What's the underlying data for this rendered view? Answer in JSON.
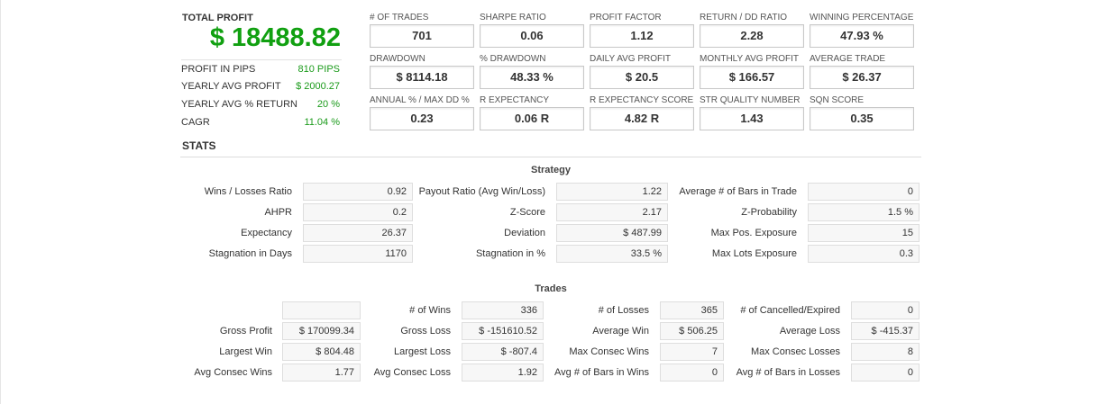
{
  "total_profit": {
    "label": "TOTAL PROFIT",
    "value": "$ 18488.82"
  },
  "summary": [
    {
      "label": "PROFIT IN PIPS",
      "value": "810 PIPS"
    },
    {
      "label": "YEARLY AVG PROFIT",
      "value": "$ 2000.27"
    },
    {
      "label": "YEARLY AVG % RETURN",
      "value": "20 %"
    },
    {
      "label": "CAGR",
      "value": "11.04 %"
    }
  ],
  "metrics": [
    {
      "label": "# OF TRADES",
      "value": "701"
    },
    {
      "label": "SHARPE RATIO",
      "value": "0.06"
    },
    {
      "label": "PROFIT FACTOR",
      "value": "1.12"
    },
    {
      "label": "RETURN / DD RATIO",
      "value": "2.28"
    },
    {
      "label": "WINNING PERCENTAGE",
      "value": "47.93 %"
    },
    {
      "label": "DRAWDOWN",
      "value": "$ 8114.18"
    },
    {
      "label": "% DRAWDOWN",
      "value": "48.33 %"
    },
    {
      "label": "DAILY AVG PROFIT",
      "value": "$ 20.5"
    },
    {
      "label": "MONTHLY AVG PROFIT",
      "value": "$ 166.57"
    },
    {
      "label": "AVERAGE TRADE",
      "value": "$ 26.37"
    },
    {
      "label": "ANNUAL % / MAX DD %",
      "value": "0.23"
    },
    {
      "label": "R EXPECTANCY",
      "value": "0.06 R"
    },
    {
      "label": "R EXPECTANCY SCORE",
      "value": "4.82 R"
    },
    {
      "label": "STR QUALITY NUMBER",
      "value": "1.43"
    },
    {
      "label": "SQN SCORE",
      "value": "0.35"
    }
  ],
  "stats_title": "STATS",
  "strategy": {
    "title": "Strategy",
    "rows": [
      [
        {
          "label": "Wins / Losses Ratio",
          "value": "0.92"
        },
        {
          "label": "Payout Ratio (Avg Win/Loss)",
          "value": "1.22"
        },
        {
          "label": "Average # of Bars in Trade",
          "value": "0"
        }
      ],
      [
        {
          "label": "AHPR",
          "value": "0.2"
        },
        {
          "label": "Z-Score",
          "value": "2.17"
        },
        {
          "label": "Z-Probability",
          "value": "1.5 %"
        }
      ],
      [
        {
          "label": "Expectancy",
          "value": "26.37"
        },
        {
          "label": "Deviation",
          "value": "$ 487.99"
        },
        {
          "label": "Max Pos. Exposure",
          "value": "15"
        }
      ],
      [
        {
          "label": "Stagnation in Days",
          "value": "1170"
        },
        {
          "label": "Stagnation in %",
          "value": "33.5 %"
        },
        {
          "label": "Max Lots Exposure",
          "value": "0.3"
        }
      ]
    ]
  },
  "trades": {
    "title": "Trades",
    "rows": [
      [
        {
          "label": "",
          "value": ""
        },
        {
          "label": "# of Wins",
          "value": "336"
        },
        {
          "label": "# of Losses",
          "value": "365"
        },
        {
          "label": "# of Cancelled/Expired",
          "value": "0"
        }
      ],
      [
        {
          "label": "Gross Profit",
          "value": "$ 170099.34"
        },
        {
          "label": "Gross Loss",
          "value": "$ -151610.52"
        },
        {
          "label": "Average Win",
          "value": "$ 506.25"
        },
        {
          "label": "Average Loss",
          "value": "$ -415.37"
        }
      ],
      [
        {
          "label": "Largest Win",
          "value": "$ 804.48"
        },
        {
          "label": "Largest Loss",
          "value": "$ -807.4"
        },
        {
          "label": "Max Consec Wins",
          "value": "7"
        },
        {
          "label": "Max Consec Losses",
          "value": "8"
        }
      ],
      [
        {
          "label": "Avg Consec Wins",
          "value": "1.77"
        },
        {
          "label": "Avg Consec Loss",
          "value": "1.92"
        },
        {
          "label": "Avg # of Bars in Wins",
          "value": "0"
        },
        {
          "label": "Avg # of Bars in Losses",
          "value": "0"
        }
      ]
    ]
  }
}
